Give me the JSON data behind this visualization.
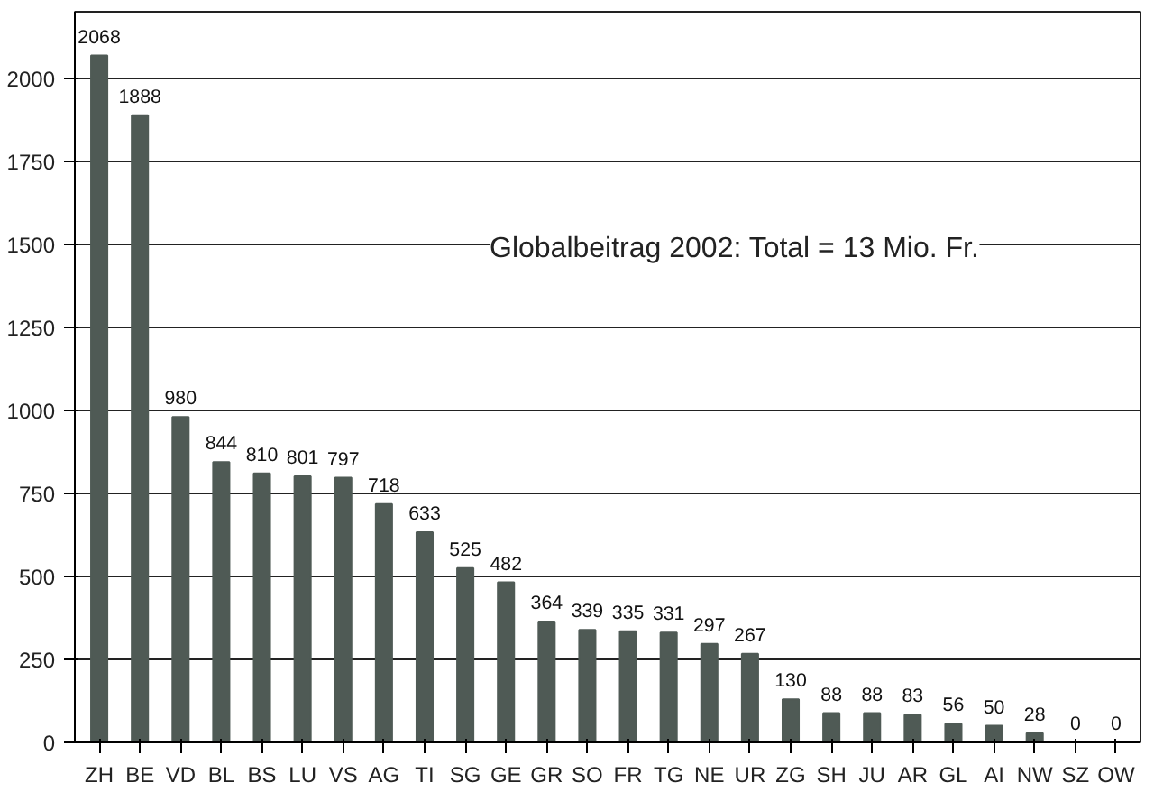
{
  "chart_data": {
    "type": "bar",
    "categories": [
      "ZH",
      "BE",
      "VD",
      "BL",
      "BS",
      "LU",
      "VS",
      "AG",
      "TI",
      "SG",
      "GE",
      "GR",
      "SO",
      "FR",
      "TG",
      "NE",
      "UR",
      "ZG",
      "SH",
      "JU",
      "AR",
      "GL",
      "AI",
      "NW",
      "SZ",
      "OW"
    ],
    "values": [
      2068,
      1888,
      980,
      844,
      810,
      801,
      797,
      718,
      633,
      525,
      482,
      364,
      339,
      335,
      331,
      297,
      267,
      130,
      88,
      88,
      83,
      56,
      50,
      28,
      0,
      0
    ],
    "color": "#4f5a55",
    "ylim": [
      0,
      2200
    ],
    "yticks": [
      0,
      250,
      500,
      750,
      1000,
      1250,
      1500,
      1750,
      2000
    ],
    "grid": "y",
    "data_labels": true,
    "annotations": [
      "Globalbeitrag 2002: Total = 13 Mio. Fr."
    ]
  }
}
